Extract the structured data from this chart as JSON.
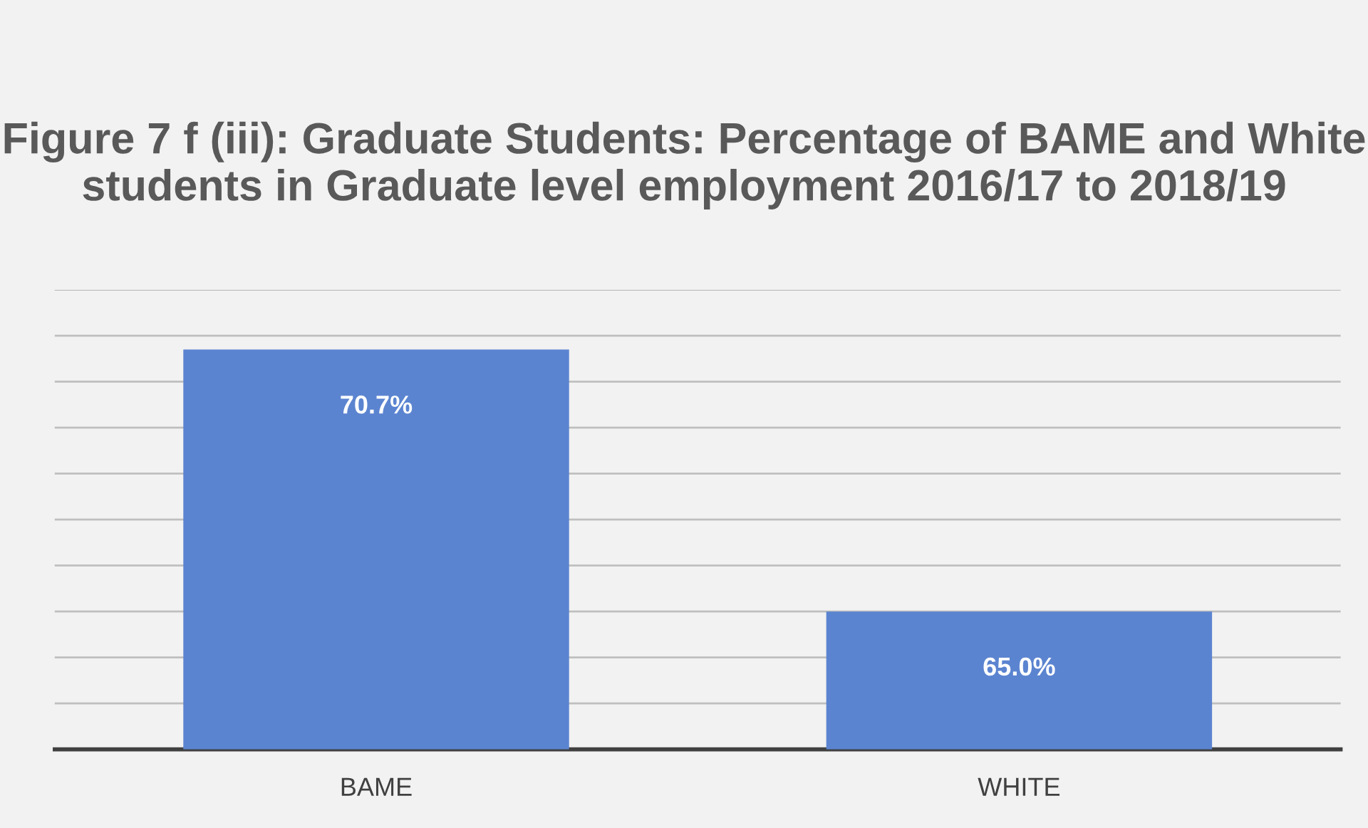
{
  "chart_data": {
    "type": "bar",
    "title": "Figure 7 f (iii): Graduate Students: Percentage of BAME and White students in Graduate level employment 2016/17 to 2018/19",
    "categories": [
      "BAME",
      "WHITE"
    ],
    "values": [
      70.7,
      65.0
    ],
    "value_labels": [
      "70.7%",
      "65.0%"
    ],
    "color": "#5b84d0",
    "ylim": [
      62,
      72
    ],
    "yticks": [
      {
        "value": 62,
        "label": null
      },
      {
        "value": 63,
        "label": null
      },
      {
        "value": 64,
        "label": null
      },
      {
        "value": 65,
        "label": null
      },
      {
        "value": 66,
        "label": null
      },
      {
        "value": 67,
        "label": null
      },
      {
        "value": 68,
        "label": null
      },
      {
        "value": 69,
        "label": null
      },
      {
        "value": 70,
        "label": null
      },
      {
        "value": 71,
        "label": null
      },
      {
        "value": 72,
        "label": null
      }
    ],
    "grid": "y",
    "tick_labels": "x"
  }
}
